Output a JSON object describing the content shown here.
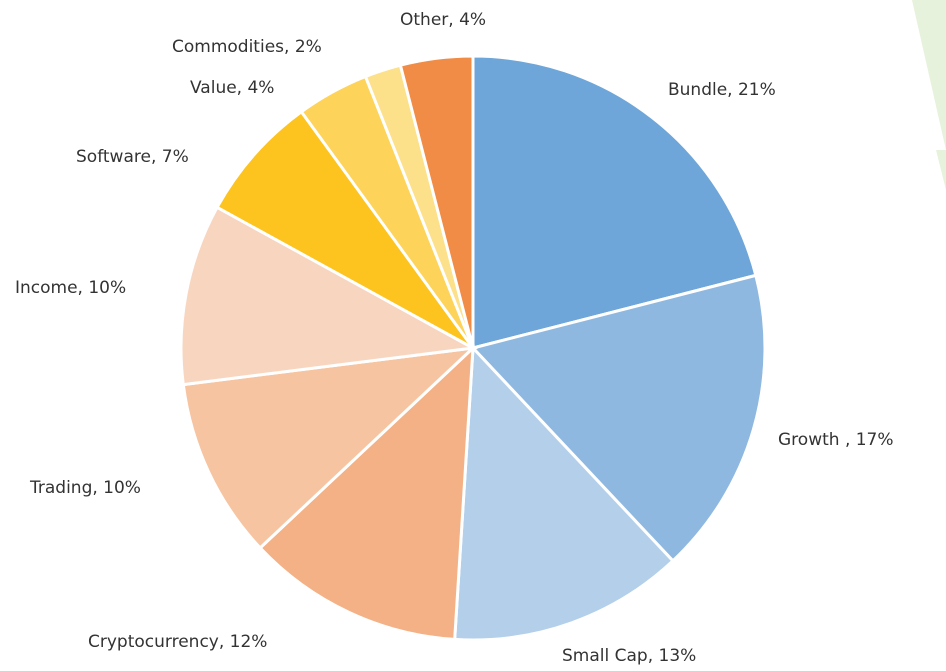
{
  "chart_data": {
    "type": "pie",
    "values": [
      21,
      17,
      13,
      12,
      10,
      10,
      7,
      4,
      2,
      4
    ],
    "value_labels": [
      "Bundle, 21%",
      "Growth , 17%",
      "Small Cap, 13%",
      "Cryptocurrency, 12%",
      "Trading, 10%",
      "Income, 10%",
      "Software, 7%",
      "Value, 4%",
      "Commodities, 2%",
      "Other, 4%"
    ],
    "colors": [
      "#6ea6d9",
      "#8fb8e0",
      "#b3cfea",
      "#f3b185",
      "#f6c4a0",
      "#f8d5bf",
      "#fdc31e",
      "#fdd35a",
      "#fde08a",
      "#f08c45"
    ]
  }
}
